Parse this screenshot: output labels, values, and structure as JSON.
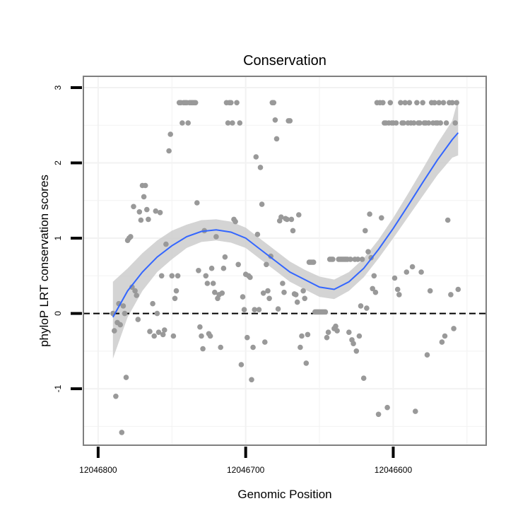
{
  "chart_data": {
    "type": "scatter",
    "title": "Conservation",
    "xlabel": "Genomic Position",
    "ylabel": "phyloP LRT conservation scores",
    "x_reversed": true,
    "xlim": [
      12046810,
      12046537
    ],
    "ylim": [
      -1.75,
      3.15
    ],
    "x_ticks": [
      12046800,
      12046700,
      12046600
    ],
    "x_tick_labels": [
      "12046800",
      "12046700",
      "12046600"
    ],
    "y_ticks": [
      3,
      2,
      1,
      0,
      -1
    ],
    "y_tick_labels": [
      "3",
      "2",
      "1",
      "0",
      "-1"
    ],
    "grid": true,
    "reference_line": {
      "y": 0,
      "style": "dashed"
    },
    "colors": {
      "points": "#999999",
      "smooth": "#3366FF",
      "ribbon": "#CCCCCC",
      "panel_border": "#7F7F7F",
      "grid": "#F2F2F2"
    },
    "series": [
      {
        "type": "scatter",
        "points": [
          [
            12046790,
            0.0
          ],
          [
            12046789,
            -0.23
          ],
          [
            12046788,
            -1.1
          ],
          [
            12046787,
            -0.12
          ],
          [
            12046786,
            0.13
          ],
          [
            12046785,
            -0.15
          ],
          [
            12046784,
            -1.58
          ],
          [
            12046783,
            0.1
          ],
          [
            12046782,
            0.0
          ],
          [
            12046781,
            -0.85
          ],
          [
            12046780,
            0.97
          ],
          [
            12046779,
            1.0
          ],
          [
            12046778,
            1.02
          ],
          [
            12046777,
            0.35
          ],
          [
            12046776,
            1.42
          ],
          [
            12046775,
            0.3
          ],
          [
            12046774,
            0.24
          ],
          [
            12046773,
            -0.08
          ],
          [
            12046772,
            1.35
          ],
          [
            12046771,
            1.24
          ],
          [
            12046770,
            1.7
          ],
          [
            12046769,
            1.55
          ],
          [
            12046768,
            1.7
          ],
          [
            12046767,
            1.38
          ],
          [
            12046766,
            1.25
          ],
          [
            12046765,
            -0.24
          ],
          [
            12046763,
            0.13
          ],
          [
            12046762,
            -0.3
          ],
          [
            12046761,
            1.36
          ],
          [
            12046760,
            0.0
          ],
          [
            12046759,
            -0.25
          ],
          [
            12046758,
            1.34
          ],
          [
            12046757,
            0.5
          ],
          [
            12046756,
            -0.28
          ],
          [
            12046755,
            -0.22
          ],
          [
            12046754,
            0.92
          ],
          [
            12046752,
            2.16
          ],
          [
            12046751,
            2.38
          ],
          [
            12046750,
            0.5
          ],
          [
            12046749,
            -0.3
          ],
          [
            12046748,
            0.2
          ],
          [
            12046747,
            0.3
          ],
          [
            12046746,
            0.5
          ],
          [
            12046745,
            2.8
          ],
          [
            12046744,
            2.8
          ],
          [
            12046743,
            2.53
          ],
          [
            12046742,
            2.8
          ],
          [
            12046741,
            2.8
          ],
          [
            12046740,
            2.8
          ],
          [
            12046739,
            2.53
          ],
          [
            12046738,
            2.8
          ],
          [
            12046737,
            2.8
          ],
          [
            12046736,
            2.8
          ],
          [
            12046735,
            2.8
          ],
          [
            12046734,
            2.8
          ],
          [
            12046733,
            1.47
          ],
          [
            12046732,
            0.57
          ],
          [
            12046731,
            -0.18
          ],
          [
            12046730,
            -0.3
          ],
          [
            12046729,
            -0.47
          ],
          [
            12046728,
            1.1
          ],
          [
            12046727,
            0.5
          ],
          [
            12046726,
            0.4
          ],
          [
            12046725,
            -0.27
          ],
          [
            12046724,
            -0.3
          ],
          [
            12046723,
            0.6
          ],
          [
            12046722,
            0.4
          ],
          [
            12046721,
            0.28
          ],
          [
            12046720,
            1.02
          ],
          [
            12046719,
            0.2
          ],
          [
            12046718,
            0.25
          ],
          [
            12046717,
            -0.45
          ],
          [
            12046716,
            0.27
          ],
          [
            12046715,
            0.6
          ],
          [
            12046714,
            0.75
          ],
          [
            12046713,
            2.8
          ],
          [
            12046712,
            2.53
          ],
          [
            12046711,
            2.8
          ],
          [
            12046710,
            2.8
          ],
          [
            12046709,
            2.53
          ],
          [
            12046708,
            1.25
          ],
          [
            12046707,
            1.22
          ],
          [
            12046706,
            2.8
          ],
          [
            12046705,
            0.65
          ],
          [
            12046704,
            2.53
          ],
          [
            12046703,
            -0.68
          ],
          [
            12046702,
            0.22
          ],
          [
            12046701,
            0.05
          ],
          [
            12046700,
            0.52
          ],
          [
            12046699,
            -0.32
          ],
          [
            12046698,
            0.5
          ],
          [
            12046697,
            0.48
          ],
          [
            12046696,
            -0.88
          ],
          [
            12046695,
            -0.45
          ],
          [
            12046694,
            0.05
          ],
          [
            12046693,
            2.08
          ],
          [
            12046692,
            1.05
          ],
          [
            12046691,
            0.05
          ],
          [
            12046690,
            1.94
          ],
          [
            12046689,
            1.45
          ],
          [
            12046688,
            0.27
          ],
          [
            12046687,
            -0.38
          ],
          [
            12046686,
            0.65
          ],
          [
            12046685,
            0.3
          ],
          [
            12046684,
            0.2
          ],
          [
            12046683,
            0.76
          ],
          [
            12046682,
            2.8
          ],
          [
            12046681,
            2.8
          ],
          [
            12046680,
            2.57
          ],
          [
            12046679,
            2.32
          ],
          [
            12046678,
            0.06
          ],
          [
            12046677,
            1.23
          ],
          [
            12046676,
            1.28
          ],
          [
            12046675,
            0.4
          ],
          [
            12046674,
            0.28
          ],
          [
            12046673,
            1.26
          ],
          [
            12046672,
            1.25
          ],
          [
            12046671,
            2.56
          ],
          [
            12046670,
            2.56
          ],
          [
            12046669,
            1.25
          ],
          [
            12046668,
            1.1
          ],
          [
            12046667,
            0.26
          ],
          [
            12046666,
            0.25
          ],
          [
            12046665,
            0.15
          ],
          [
            12046664,
            1.31
          ],
          [
            12046663,
            -0.45
          ],
          [
            12046662,
            -0.3
          ],
          [
            12046661,
            0.3
          ],
          [
            12046660,
            0.2
          ],
          [
            12046659,
            -0.66
          ],
          [
            12046658,
            -0.28
          ],
          [
            12046657,
            0.68
          ],
          [
            12046656,
            0.68
          ],
          [
            12046655,
            0.68
          ],
          [
            12046654,
            0.68
          ],
          [
            12046653,
            0.02
          ],
          [
            12046652,
            0.02
          ],
          [
            12046651,
            0.02
          ],
          [
            12046650,
            0.02
          ],
          [
            12046649,
            0.02
          ],
          [
            12046648,
            0.02
          ],
          [
            12046647,
            0.02
          ],
          [
            12046646,
            0.02
          ],
          [
            12046645,
            -0.32
          ],
          [
            12046644,
            -0.25
          ],
          [
            12046643,
            0.72
          ],
          [
            12046642,
            0.72
          ],
          [
            12046641,
            0.72
          ],
          [
            12046640,
            -0.2
          ],
          [
            12046639,
            -0.17
          ],
          [
            12046638,
            -0.23
          ],
          [
            12046637,
            0.72
          ],
          [
            12046636,
            0.72
          ],
          [
            12046635,
            0.72
          ],
          [
            12046634,
            0.72
          ],
          [
            12046633,
            0.72
          ],
          [
            12046632,
            0.72
          ],
          [
            12046631,
            0.72
          ],
          [
            12046630,
            -0.25
          ],
          [
            12046629,
            0.72
          ],
          [
            12046628,
            -0.35
          ],
          [
            12046627,
            -0.4
          ],
          [
            12046626,
            0.72
          ],
          [
            12046625,
            -0.5
          ],
          [
            12046624,
            0.72
          ],
          [
            12046623,
            -0.3
          ],
          [
            12046622,
            0.1
          ],
          [
            12046621,
            0.72
          ],
          [
            12046620,
            -0.86
          ],
          [
            12046619,
            1.1
          ],
          [
            12046618,
            0.07
          ],
          [
            12046617,
            0.82
          ],
          [
            12046616,
            1.32
          ],
          [
            12046615,
            0.74
          ],
          [
            12046614,
            0.33
          ],
          [
            12046613,
            0.5
          ],
          [
            12046612,
            0.28
          ],
          [
            12046611,
            2.8
          ],
          [
            12046610,
            -1.34
          ],
          [
            12046609,
            2.8
          ],
          [
            12046608,
            1.27
          ],
          [
            12046607,
            2.8
          ],
          [
            12046606,
            2.53
          ],
          [
            12046605,
            2.53
          ],
          [
            12046604,
            -1.25
          ],
          [
            12046603,
            2.53
          ],
          [
            12046602,
            2.8
          ],
          [
            12046601,
            2.53
          ],
          [
            12046600,
            2.53
          ],
          [
            12046599,
            0.47
          ],
          [
            12046598,
            2.53
          ],
          [
            12046597,
            0.32
          ],
          [
            12046596,
            0.25
          ],
          [
            12046595,
            2.8
          ],
          [
            12046594,
            2.53
          ],
          [
            12046593,
            2.53
          ],
          [
            12046592,
            2.8
          ],
          [
            12046591,
            0.55
          ],
          [
            12046590,
            2.53
          ],
          [
            12046589,
            2.8
          ],
          [
            12046588,
            2.53
          ],
          [
            12046587,
            0.62
          ],
          [
            12046586,
            2.53
          ],
          [
            12046585,
            -1.3
          ],
          [
            12046584,
            2.8
          ],
          [
            12046583,
            2.53
          ],
          [
            12046582,
            2.53
          ],
          [
            12046581,
            0.55
          ],
          [
            12046580,
            2.8
          ],
          [
            12046579,
            2.53
          ],
          [
            12046578,
            2.53
          ],
          [
            12046577,
            -0.55
          ],
          [
            12046576,
            2.53
          ],
          [
            12046575,
            0.3
          ],
          [
            12046574,
            2.8
          ],
          [
            12046573,
            2.53
          ],
          [
            12046572,
            2.8
          ],
          [
            12046571,
            2.53
          ],
          [
            12046570,
            2.53
          ],
          [
            12046569,
            2.8
          ],
          [
            12046568,
            2.53
          ],
          [
            12046567,
            -0.38
          ],
          [
            12046566,
            2.8
          ],
          [
            12046565,
            -0.3
          ],
          [
            12046564,
            2.53
          ],
          [
            12046563,
            1.24
          ],
          [
            12046562,
            2.8
          ],
          [
            12046561,
            0.25
          ],
          [
            12046560,
            2.8
          ],
          [
            12046559,
            -0.2
          ],
          [
            12046558,
            2.53
          ],
          [
            12046557,
            2.8
          ],
          [
            12046556,
            0.32
          ]
        ]
      },
      {
        "type": "smooth",
        "x": [
          12046790,
          12046780,
          12046770,
          12046760,
          12046750,
          12046740,
          12046730,
          12046720,
          12046710,
          12046700,
          12046690,
          12046680,
          12046670,
          12046660,
          12046650,
          12046640,
          12046630,
          12046620,
          12046610,
          12046600,
          12046590,
          12046580,
          12046570,
          12046560,
          12046556
        ],
        "y": [
          -0.05,
          0.3,
          0.55,
          0.75,
          0.9,
          1.02,
          1.09,
          1.11,
          1.08,
          1.0,
          0.85,
          0.7,
          0.55,
          0.45,
          0.35,
          0.32,
          0.42,
          0.6,
          0.85,
          1.13,
          1.43,
          1.74,
          2.04,
          2.31,
          2.4
        ],
        "ymin": [
          -0.6,
          -0.05,
          0.3,
          0.55,
          0.72,
          0.87,
          0.95,
          0.97,
          0.94,
          0.87,
          0.72,
          0.57,
          0.42,
          0.32,
          0.22,
          0.19,
          0.3,
          0.48,
          0.73,
          1.0,
          1.28,
          1.56,
          1.84,
          2.07,
          2.1
        ],
        "ymax": [
          0.42,
          0.6,
          0.8,
          0.97,
          1.1,
          1.18,
          1.24,
          1.25,
          1.22,
          1.14,
          0.99,
          0.84,
          0.69,
          0.58,
          0.49,
          0.45,
          0.55,
          0.73,
          0.98,
          1.27,
          1.59,
          1.92,
          2.26,
          2.56,
          2.85
        ]
      }
    ]
  }
}
